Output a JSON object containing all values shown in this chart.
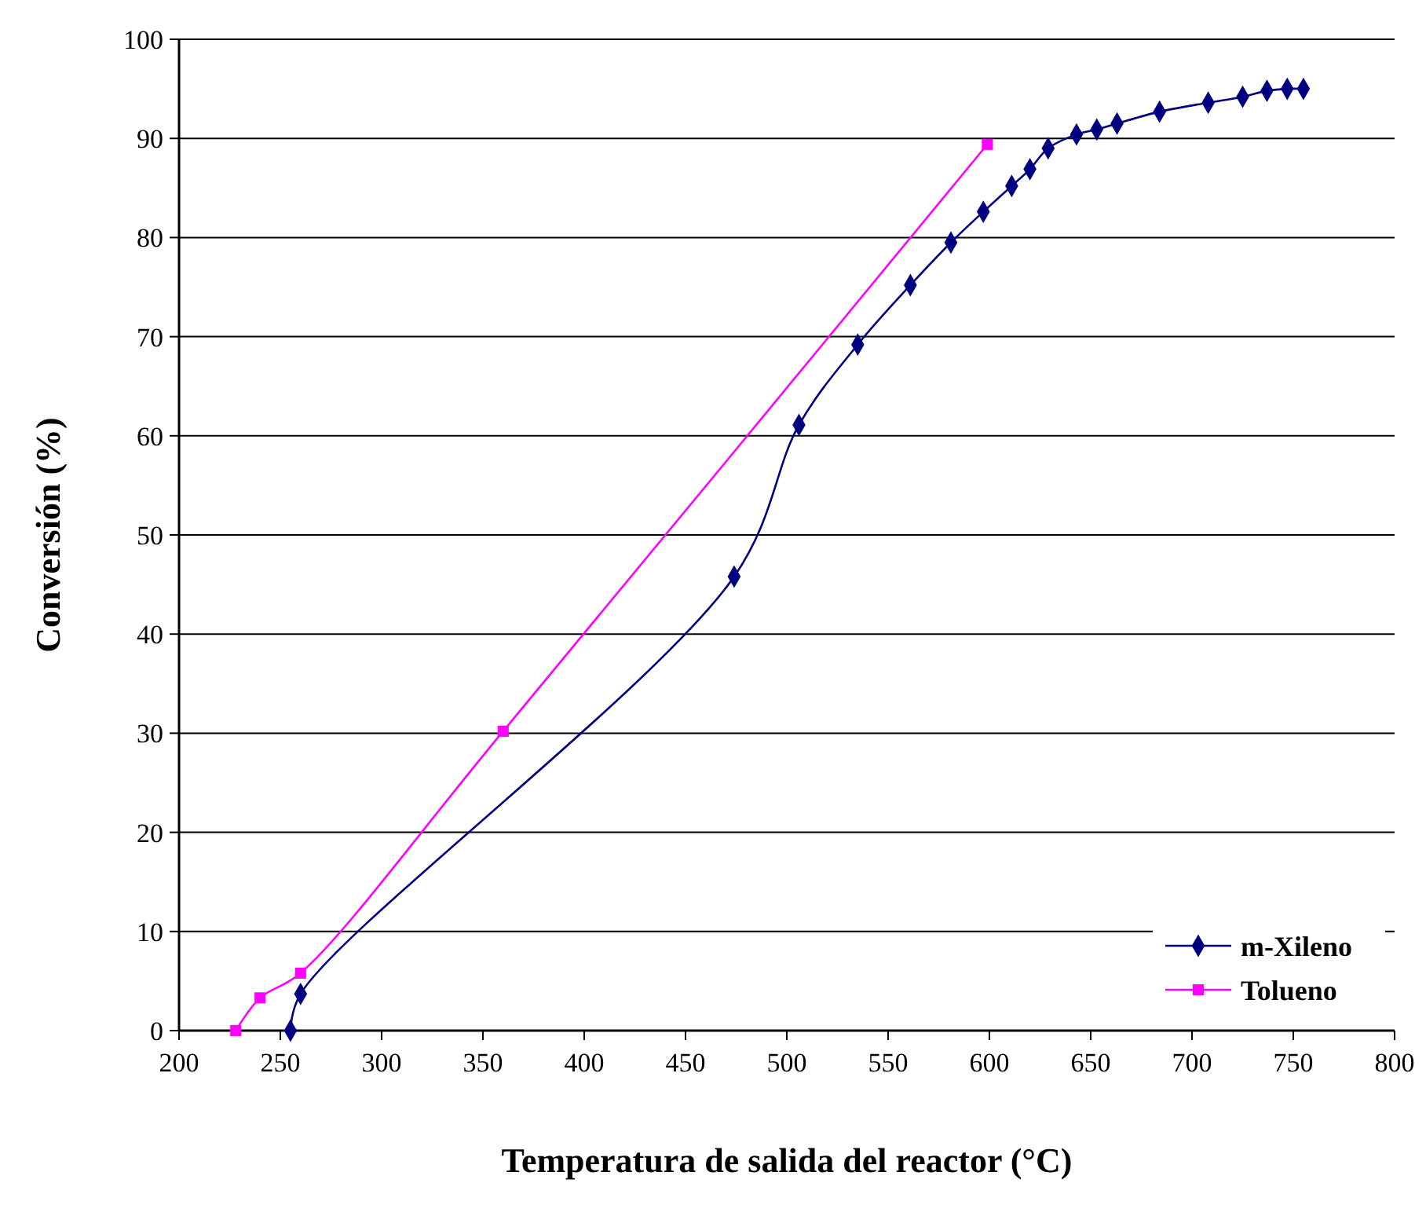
{
  "chart_data": {
    "type": "line",
    "xlabel": "Temperatura de salida del reactor (°C)",
    "ylabel": "Conversión (%)",
    "xlim": [
      200,
      800
    ],
    "xticks": [
      200,
      250,
      300,
      350,
      400,
      450,
      500,
      550,
      600,
      650,
      700,
      750,
      800
    ],
    "ylim": [
      0,
      100
    ],
    "yticks": [
      0,
      10,
      20,
      30,
      40,
      50,
      60,
      70,
      80,
      90,
      100
    ],
    "grid": "y",
    "legend": "bottom right",
    "series": [
      {
        "name": "m-Xileno",
        "color": "#000080",
        "marker": "diamond",
        "x": [
          255,
          260,
          474,
          506,
          535,
          561,
          581,
          597,
          611,
          620,
          629,
          643,
          653,
          663,
          684,
          708,
          725,
          737,
          747,
          755
        ],
        "values": [
          0,
          3.7,
          45.8,
          61.1,
          69.2,
          75.2,
          79.5,
          82.6,
          85.2,
          86.9,
          89.0,
          90.4,
          90.9,
          91.5,
          92.7,
          93.6,
          94.2,
          94.8,
          95.0,
          95.0
        ]
      },
      {
        "name": "Tolueno",
        "color": "#ff00ff",
        "marker": "square",
        "x": [
          228,
          240,
          260,
          360,
          599
        ],
        "values": [
          0,
          3.3,
          5.8,
          30.2,
          89.4
        ]
      }
    ]
  }
}
